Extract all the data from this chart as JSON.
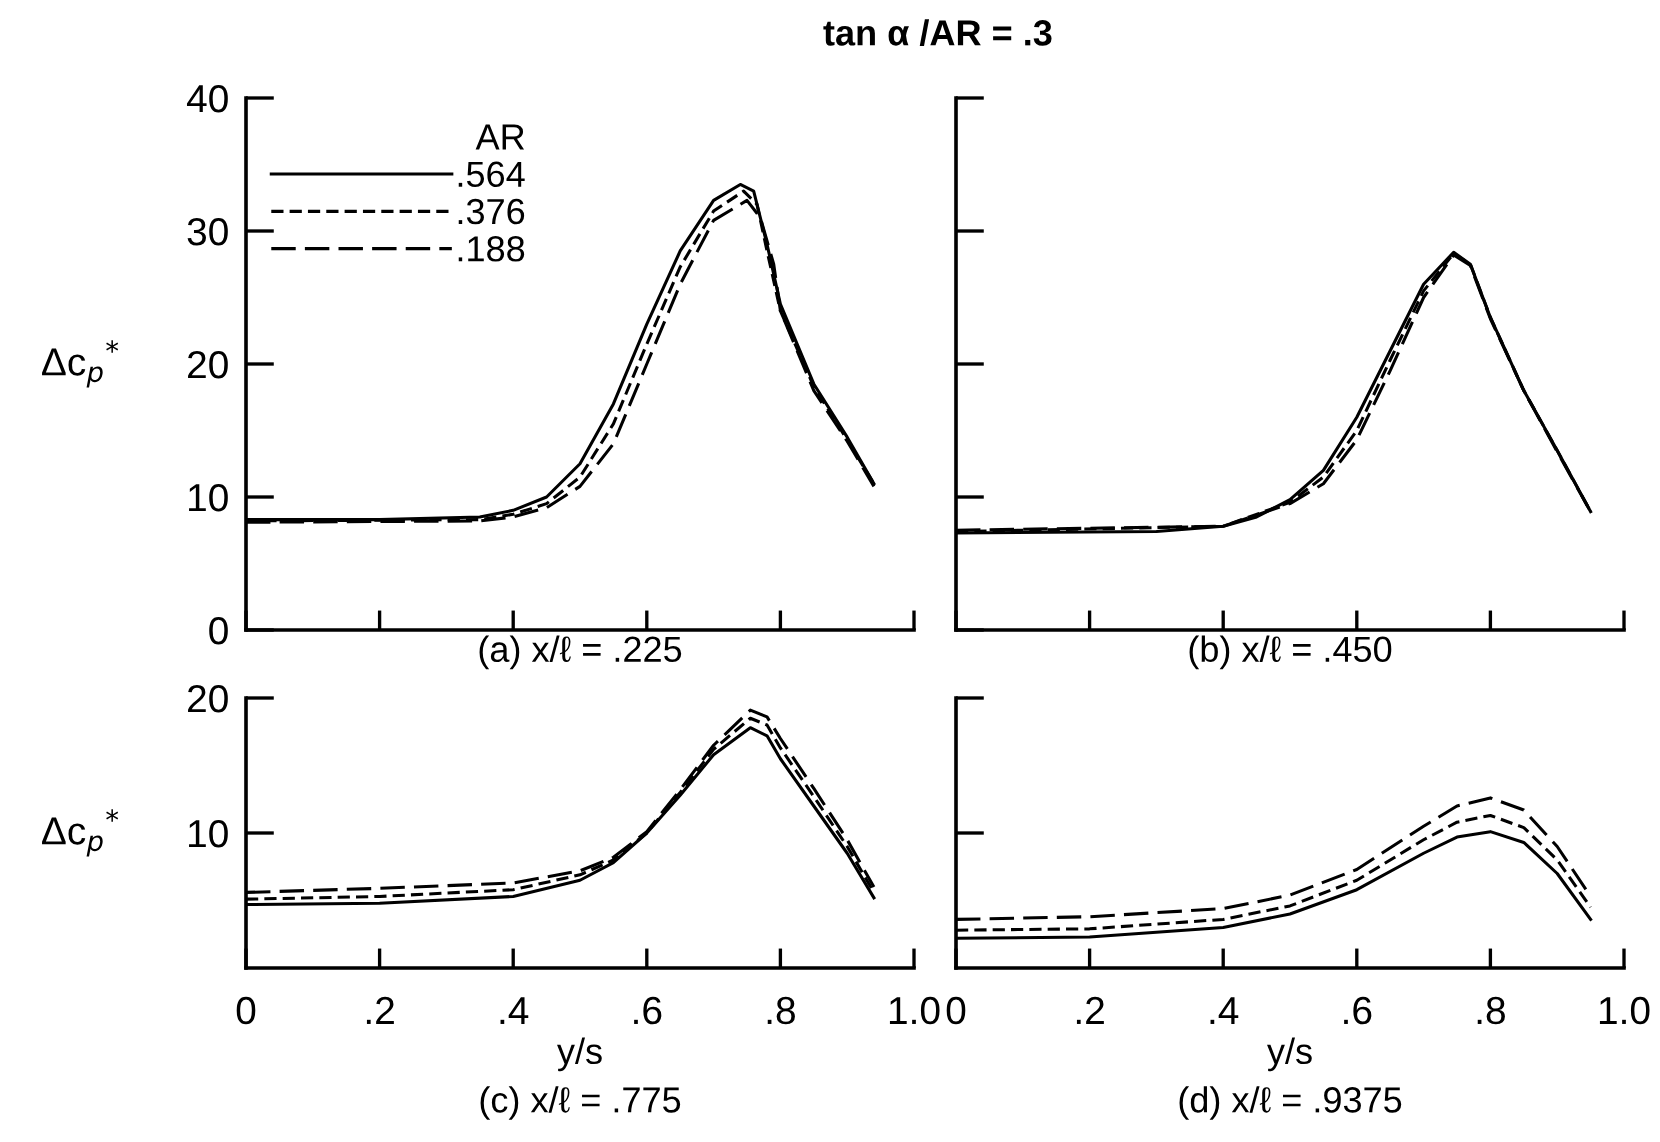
{
  "chart_data": [
    {
      "type": "line",
      "title": "tan α /AR = .3",
      "ylabel": "Δc$_{p}$$^{*}$",
      "xlabel": "(a) x/ℓ = .225",
      "legend_title": "AR",
      "legend": "top left",
      "tick_labels": "y",
      "xlim": [
        0,
        1.0
      ],
      "xticks": [
        0,
        0.2,
        0.4,
        0.6,
        0.8,
        1.0
      ],
      "ylim": [
        0,
        40
      ],
      "yticks": [
        0,
        10,
        20,
        30,
        40
      ],
      "series": [
        {
          "name": ".564",
          "color": "#000000",
          "line_style": "solid",
          "x": [
            0,
            0.2,
            0.35,
            0.4,
            0.45,
            0.5,
            0.55,
            0.6,
            0.65,
            0.7,
            0.74,
            0.76,
            0.78,
            0.8,
            0.85,
            0.9,
            0.94
          ],
          "values": [
            8.3,
            8.3,
            8.5,
            9,
            10,
            12.5,
            17,
            23,
            28.5,
            32.3,
            33.5,
            33,
            29,
            24.5,
            18.5,
            14.5,
            11
          ]
        },
        {
          "name": ".376",
          "color": "#000000",
          "line_style": "dashed",
          "x": [
            0,
            0.35,
            0.4,
            0.45,
            0.5,
            0.55,
            0.6,
            0.65,
            0.7,
            0.745,
            0.765,
            0.78,
            0.8,
            0.85,
            0.9,
            0.94
          ],
          "values": [
            8.2,
            8.3,
            8.7,
            9.5,
            11.5,
            15.5,
            21.5,
            27.3,
            31.5,
            33,
            32,
            28.5,
            24,
            18.3,
            14.3,
            11
          ]
        },
        {
          "name": ".188",
          "color": "#000000",
          "line_style": "dashed",
          "x": [
            0,
            0.35,
            0.4,
            0.45,
            0.5,
            0.55,
            0.6,
            0.65,
            0.7,
            0.75,
            0.77,
            0.79,
            0.8,
            0.85,
            0.9,
            0.94
          ],
          "values": [
            8.1,
            8.2,
            8.5,
            9.2,
            10.8,
            14,
            20,
            26,
            30.8,
            32.3,
            31,
            27.5,
            24,
            18,
            14.2,
            10.8
          ]
        }
      ]
    },
    {
      "type": "line",
      "xlabel": "(b) x/ℓ = .450",
      "tick_labels": false,
      "xlim": [
        0,
        1.0
      ],
      "xticks": [
        0,
        0.2,
        0.4,
        0.6,
        0.8,
        1.0
      ],
      "ylim": [
        0,
        40
      ],
      "yticks": [
        0,
        10,
        20,
        30,
        40
      ],
      "series": [
        {
          "color": "#000000",
          "line_style": "solid",
          "x": [
            0,
            0.3,
            0.4,
            0.45,
            0.5,
            0.55,
            0.6,
            0.65,
            0.7,
            0.745,
            0.77,
            0.8,
            0.85,
            0.9,
            0.95
          ],
          "values": [
            7.3,
            7.4,
            7.8,
            8.5,
            9.8,
            12,
            16,
            21,
            26,
            28.4,
            27.5,
            23.5,
            18,
            13.5,
            8.9
          ]
        },
        {
          "color": "#000000",
          "line_style": "dashed",
          "x": [
            0,
            0.4,
            0.5,
            0.55,
            0.6,
            0.65,
            0.7,
            0.745,
            0.77,
            0.8,
            0.85,
            0.9,
            0.95
          ],
          "values": [
            7.4,
            7.8,
            9.6,
            11.5,
            15,
            20.3,
            25.5,
            28.3,
            27.5,
            23.5,
            18,
            13.5,
            8.9
          ]
        },
        {
          "color": "#000000",
          "line_style": "dashed",
          "x": [
            0,
            0.4,
            0.5,
            0.55,
            0.6,
            0.65,
            0.7,
            0.745,
            0.77,
            0.8,
            0.85,
            0.9,
            0.95
          ],
          "values": [
            7.5,
            7.8,
            9.5,
            11,
            14.3,
            19.5,
            25,
            28.2,
            27.4,
            23.4,
            18,
            13.4,
            8.9
          ]
        }
      ]
    },
    {
      "type": "line",
      "ylabel": "Δc$_{p}$$^{*}$",
      "xlabel": "y/s",
      "annotations": [
        "(c) x/ℓ = .775"
      ],
      "xlim": [
        0,
        1.0
      ],
      "xticks": [
        0,
        {
          "value": 0.2,
          "label": ".2"
        },
        {
          "value": 0.4,
          "label": ".4"
        },
        {
          "value": 0.6,
          "label": ".6"
        },
        {
          "value": 0.8,
          "label": ".8"
        },
        {
          "value": 1.0,
          "label": "1.0"
        }
      ],
      "ylim": [
        0,
        20
      ],
      "yticks": [
        10,
        20
      ],
      "series": [
        {
          "color": "#000000",
          "line_style": "solid",
          "x": [
            0,
            0.2,
            0.4,
            0.5,
            0.55,
            0.6,
            0.65,
            0.7,
            0.755,
            0.78,
            0.8,
            0.85,
            0.9,
            0.94
          ],
          "values": [
            4.7,
            4.8,
            5.3,
            6.5,
            7.8,
            10,
            12.8,
            15.8,
            17.8,
            17.2,
            15.5,
            12,
            8.5,
            5.2
          ]
        },
        {
          "color": "#000000",
          "line_style": "dashed",
          "x": [
            0,
            0.2,
            0.4,
            0.5,
            0.55,
            0.6,
            0.65,
            0.7,
            0.755,
            0.78,
            0.8,
            0.85,
            0.9,
            0.94
          ],
          "values": [
            5.1,
            5.3,
            5.8,
            6.9,
            8,
            10,
            13,
            16.2,
            18.5,
            18,
            16.3,
            12.7,
            9,
            5.6
          ]
        },
        {
          "color": "#000000",
          "line_style": "dashed",
          "x": [
            0,
            0.2,
            0.4,
            0.5,
            0.55,
            0.6,
            0.65,
            0.7,
            0.755,
            0.78,
            0.8,
            0.85,
            0.9,
            0.94
          ],
          "values": [
            5.6,
            5.9,
            6.3,
            7.2,
            8.2,
            10.1,
            13.2,
            16.5,
            19.1,
            18.6,
            17,
            13.3,
            9.5,
            6
          ]
        }
      ]
    },
    {
      "type": "line",
      "xlabel": "y/s",
      "annotations": [
        "(d) x/ℓ = .9375"
      ],
      "tick_labels": "x",
      "xlim": [
        0,
        1.0
      ],
      "xticks": [
        0,
        {
          "value": 0.2,
          "label": ".2"
        },
        {
          "value": 0.4,
          "label": ".4"
        },
        {
          "value": 0.6,
          "label": ".6"
        },
        {
          "value": 0.8,
          "label": ".8"
        },
        {
          "value": 1.0,
          "label": "1.0"
        }
      ],
      "ylim": [
        0,
        20
      ],
      "yticks": [
        10,
        20
      ],
      "series": [
        {
          "color": "#000000",
          "line_style": "solid",
          "x": [
            0,
            0.2,
            0.4,
            0.5,
            0.6,
            0.7,
            0.75,
            0.8,
            0.85,
            0.9,
            0.95
          ],
          "values": [
            2.2,
            2.3,
            3,
            4,
            5.8,
            8.5,
            9.7,
            10.1,
            9.3,
            7,
            3.6
          ]
        },
        {
          "color": "#000000",
          "line_style": "dashed",
          "x": [
            0,
            0.2,
            0.4,
            0.5,
            0.6,
            0.7,
            0.75,
            0.8,
            0.85,
            0.9,
            0.95
          ],
          "values": [
            2.8,
            2.9,
            3.6,
            4.6,
            6.5,
            9.5,
            10.8,
            11.3,
            10.4,
            8,
            4.5
          ]
        },
        {
          "color": "#000000",
          "line_style": "dashed",
          "x": [
            0,
            0.2,
            0.4,
            0.5,
            0.6,
            0.7,
            0.75,
            0.8,
            0.85,
            0.9,
            0.95
          ],
          "values": [
            3.6,
            3.8,
            4.4,
            5.4,
            7.3,
            10.5,
            12,
            12.6,
            11.7,
            9,
            5.3
          ]
        }
      ]
    }
  ]
}
